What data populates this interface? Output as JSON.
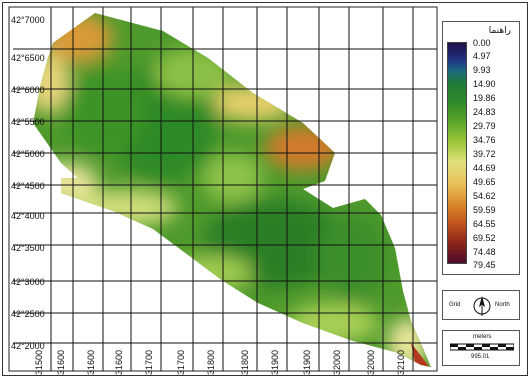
{
  "map": {
    "y_ticks": [
      "42°7000",
      "42°6500",
      "42°6000",
      "42°5500",
      "42°5000",
      "42°4500",
      "42°4000",
      "42°3500",
      "42°3000",
      "42°2500",
      "42°2000"
    ],
    "x_ticks": [
      "31500",
      "31600",
      "31600",
      "31600",
      "31700",
      "31700",
      "31800",
      "31800",
      "31900",
      "31900",
      "32000",
      "32000",
      "32100"
    ]
  },
  "legend": {
    "title": "راهنما",
    "values": [
      "0.00",
      "4.97",
      "9.93",
      "14.90",
      "19.86",
      "24.83",
      "29.79",
      "34.76",
      "39.72",
      "44.69",
      "49.65",
      "54.62",
      "59.59",
      "64.55",
      "69.52",
      "74.48",
      "79.45"
    ],
    "colors": [
      "#1b1447",
      "#1f3f8a",
      "#1f7a3a",
      "#5da62a",
      "#dfe07a",
      "#d98a2a",
      "#8a2418"
    ]
  },
  "north_arrow": {
    "left_label": "Grid",
    "right_label": "North"
  },
  "scale_bar": {
    "unit": "meters",
    "value": "995.01"
  }
}
